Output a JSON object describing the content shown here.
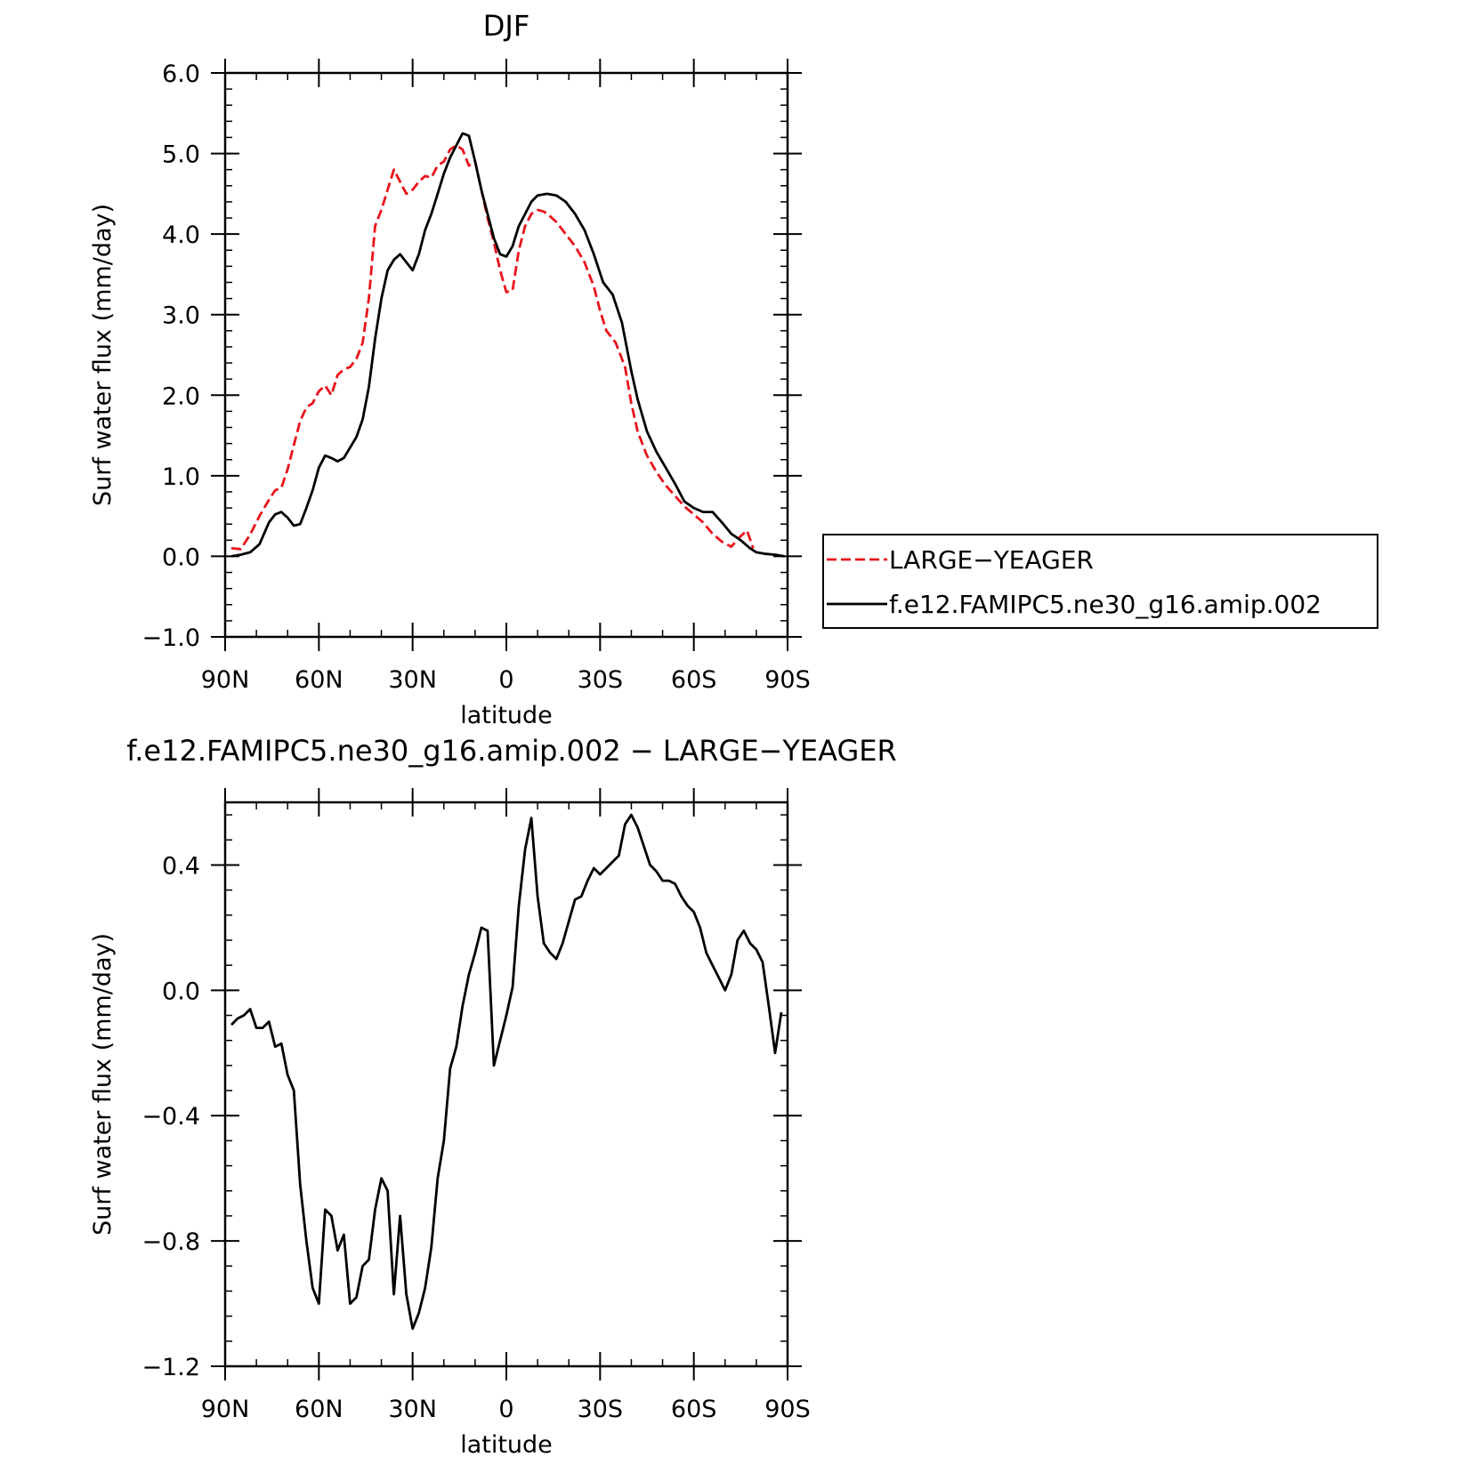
{
  "chart_data": [
    {
      "type": "line",
      "title": "DJF",
      "xlabel": "latitude",
      "ylabel": "Surf water flux (mm/day)",
      "xlim": [
        90,
        -90
      ],
      "ylim": [
        -1.0,
        6.0
      ],
      "x_ticks": [
        {
          "value": 90,
          "label": "90N"
        },
        {
          "value": 60,
          "label": "60N"
        },
        {
          "value": 30,
          "label": "30N"
        },
        {
          "value": 0,
          "label": "0"
        },
        {
          "value": -30,
          "label": "30S"
        },
        {
          "value": -60,
          "label": "60S"
        },
        {
          "value": -90,
          "label": "90S"
        }
      ],
      "y_ticks": [
        {
          "value": -1.0,
          "label": "−1.0"
        },
        {
          "value": 0.0,
          "label": "0.0"
        },
        {
          "value": 1.0,
          "label": "1.0"
        },
        {
          "value": 2.0,
          "label": "2.0"
        },
        {
          "value": 3.0,
          "label": "3.0"
        },
        {
          "value": 4.0,
          "label": "4.0"
        },
        {
          "value": 5.0,
          "label": "5.0"
        },
        {
          "value": 6.0,
          "label": "6.0"
        }
      ],
      "legend_position": "right",
      "series": [
        {
          "name": "LARGE−YEAGER",
          "color": "#e8141c",
          "dash": "dashed",
          "points": [
            [
              88,
              0.1
            ],
            [
              85,
              0.09
            ],
            [
              82,
              0.27
            ],
            [
              79,
              0.5
            ],
            [
              76,
              0.7
            ],
            [
              74,
              0.82
            ],
            [
              72,
              0.85
            ],
            [
              70,
              1.08
            ],
            [
              68,
              1.38
            ],
            [
              66,
              1.68
            ],
            [
              64,
              1.85
            ],
            [
              62,
              1.9
            ],
            [
              60,
              2.05
            ],
            [
              58,
              2.12
            ],
            [
              56,
              2.0
            ],
            [
              54,
              2.25
            ],
            [
              52,
              2.32
            ],
            [
              50,
              2.35
            ],
            [
              48,
              2.45
            ],
            [
              46,
              2.65
            ],
            [
              44,
              3.2
            ],
            [
              42,
              4.1
            ],
            [
              40,
              4.3
            ],
            [
              38,
              4.55
            ],
            [
              36,
              4.8
            ],
            [
              34,
              4.65
            ],
            [
              32,
              4.5
            ],
            [
              30,
              4.55
            ],
            [
              28,
              4.65
            ],
            [
              26,
              4.72
            ],
            [
              24,
              4.7
            ],
            [
              22,
              4.85
            ],
            [
              20,
              4.9
            ],
            [
              18,
              5.05
            ],
            [
              16,
              5.1
            ],
            [
              14,
              5.05
            ],
            [
              12,
              4.85
            ],
            [
              10,
              4.9
            ],
            [
              8,
              4.55
            ],
            [
              6,
              4.2
            ],
            [
              4,
              3.9
            ],
            [
              2,
              3.55
            ],
            [
              0,
              3.28
            ],
            [
              -2,
              3.3
            ],
            [
              -4,
              3.8
            ],
            [
              -6,
              4.1
            ],
            [
              -8,
              4.25
            ],
            [
              -10,
              4.3
            ],
            [
              -12,
              4.28
            ],
            [
              -14,
              4.22
            ],
            [
              -16,
              4.15
            ],
            [
              -18,
              4.05
            ],
            [
              -20,
              3.95
            ],
            [
              -22,
              3.85
            ],
            [
              -25,
              3.65
            ],
            [
              -28,
              3.35
            ],
            [
              -30,
              3.05
            ],
            [
              -32,
              2.8
            ],
            [
              -35,
              2.65
            ],
            [
              -38,
              2.35
            ],
            [
              -40,
              1.9
            ],
            [
              -42,
              1.55
            ],
            [
              -45,
              1.25
            ],
            [
              -48,
              1.05
            ],
            [
              -51,
              0.88
            ],
            [
              -54,
              0.75
            ],
            [
              -57,
              0.62
            ],
            [
              -60,
              0.52
            ],
            [
              -63,
              0.42
            ],
            [
              -66,
              0.28
            ],
            [
              -69,
              0.18
            ],
            [
              -72,
              0.12
            ],
            [
              -75,
              0.25
            ],
            [
              -77,
              0.32
            ],
            [
              -79,
              0.1
            ]
          ]
        },
        {
          "name": "f.e12.FAMIPC5.ne30_g16.amip.002",
          "color": "#000000",
          "dash": "solid",
          "points": [
            [
              88,
              0.0
            ],
            [
              85,
              0.02
            ],
            [
              82,
              0.05
            ],
            [
              79,
              0.15
            ],
            [
              76,
              0.42
            ],
            [
              74,
              0.52
            ],
            [
              72,
              0.55
            ],
            [
              70,
              0.48
            ],
            [
              68,
              0.38
            ],
            [
              66,
              0.4
            ],
            [
              64,
              0.6
            ],
            [
              62,
              0.82
            ],
            [
              60,
              1.1
            ],
            [
              58,
              1.25
            ],
            [
              56,
              1.22
            ],
            [
              54,
              1.18
            ],
            [
              52,
              1.22
            ],
            [
              50,
              1.35
            ],
            [
              48,
              1.48
            ],
            [
              46,
              1.7
            ],
            [
              44,
              2.1
            ],
            [
              42,
              2.7
            ],
            [
              40,
              3.2
            ],
            [
              38,
              3.55
            ],
            [
              36,
              3.68
            ],
            [
              34,
              3.75
            ],
            [
              32,
              3.65
            ],
            [
              30,
              3.55
            ],
            [
              28,
              3.75
            ],
            [
              26,
              4.05
            ],
            [
              24,
              4.25
            ],
            [
              22,
              4.5
            ],
            [
              20,
              4.75
            ],
            [
              18,
              4.95
            ],
            [
              16,
              5.1
            ],
            [
              14,
              5.25
            ],
            [
              12,
              5.22
            ],
            [
              10,
              4.9
            ],
            [
              8,
              4.55
            ],
            [
              6,
              4.25
            ],
            [
              4,
              3.95
            ],
            [
              2,
              3.75
            ],
            [
              0,
              3.72
            ],
            [
              -2,
              3.85
            ],
            [
              -4,
              4.1
            ],
            [
              -6,
              4.25
            ],
            [
              -8,
              4.4
            ],
            [
              -10,
              4.48
            ],
            [
              -13,
              4.5
            ],
            [
              -16,
              4.48
            ],
            [
              -19,
              4.4
            ],
            [
              -22,
              4.25
            ],
            [
              -25,
              4.05
            ],
            [
              -28,
              3.75
            ],
            [
              -31,
              3.4
            ],
            [
              -34,
              3.25
            ],
            [
              -37,
              2.9
            ],
            [
              -40,
              2.3
            ],
            [
              -42,
              1.95
            ],
            [
              -45,
              1.55
            ],
            [
              -48,
              1.3
            ],
            [
              -51,
              1.1
            ],
            [
              -54,
              0.9
            ],
            [
              -57,
              0.68
            ],
            [
              -60,
              0.6
            ],
            [
              -63,
              0.55
            ],
            [
              -66,
              0.55
            ],
            [
              -69,
              0.42
            ],
            [
              -72,
              0.28
            ],
            [
              -75,
              0.2
            ],
            [
              -78,
              0.1
            ],
            [
              -80,
              0.05
            ],
            [
              -83,
              0.03
            ],
            [
              -86,
              0.02
            ],
            [
              -89,
              0.0
            ]
          ]
        }
      ]
    },
    {
      "type": "line",
      "title": "f.e12.FAMIPC5.ne30_g16.amip.002 − LARGE−YEAGER",
      "xlabel": "latitude",
      "ylabel": "Surf water flux (mm/day)",
      "xlim": [
        90,
        -90
      ],
      "ylim": [
        -1.2,
        0.6
      ],
      "x_ticks": [
        {
          "value": 90,
          "label": "90N"
        },
        {
          "value": 60,
          "label": "60N"
        },
        {
          "value": 30,
          "label": "30N"
        },
        {
          "value": 0,
          "label": "0"
        },
        {
          "value": -30,
          "label": "30S"
        },
        {
          "value": -60,
          "label": "60S"
        },
        {
          "value": -90,
          "label": "90S"
        }
      ],
      "y_ticks": [
        {
          "value": -1.2,
          "label": "−1.2"
        },
        {
          "value": -0.8,
          "label": "−0.8"
        },
        {
          "value": -0.4,
          "label": "−0.4"
        },
        {
          "value": 0.0,
          "label": "0.0"
        },
        {
          "value": 0.4,
          "label": "0.4"
        }
      ],
      "series": [
        {
          "name": "",
          "color": "#000000",
          "dash": "solid",
          "points": [
            [
              88,
              -0.11
            ],
            [
              86,
              -0.09
            ],
            [
              84,
              -0.08
            ],
            [
              82,
              -0.06
            ],
            [
              80,
              -0.12
            ],
            [
              78,
              -0.12
            ],
            [
              76,
              -0.1
            ],
            [
              74,
              -0.18
            ],
            [
              72,
              -0.17
            ],
            [
              70,
              -0.27
            ],
            [
              68,
              -0.32
            ],
            [
              66,
              -0.62
            ],
            [
              64,
              -0.8
            ],
            [
              62,
              -0.95
            ],
            [
              60,
              -1.0
            ],
            [
              58,
              -0.7
            ],
            [
              56,
              -0.72
            ],
            [
              54,
              -0.83
            ],
            [
              52,
              -0.78
            ],
            [
              50,
              -1.0
            ],
            [
              48,
              -0.98
            ],
            [
              46,
              -0.88
            ],
            [
              44,
              -0.86
            ],
            [
              42,
              -0.7
            ],
            [
              40,
              -0.6
            ],
            [
              38,
              -0.64
            ],
            [
              36,
              -0.97
            ],
            [
              34,
              -0.72
            ],
            [
              32,
              -0.97
            ],
            [
              30,
              -1.08
            ],
            [
              28,
              -1.03
            ],
            [
              26,
              -0.95
            ],
            [
              24,
              -0.82
            ],
            [
              22,
              -0.6
            ],
            [
              20,
              -0.48
            ],
            [
              18,
              -0.25
            ],
            [
              16,
              -0.18
            ],
            [
              14,
              -0.05
            ],
            [
              12,
              0.05
            ],
            [
              10,
              0.12
            ],
            [
              8,
              0.2
            ],
            [
              6,
              0.19
            ],
            [
              4,
              -0.24
            ],
            [
              2,
              -0.16
            ],
            [
              0,
              -0.08
            ],
            [
              -2,
              0.01
            ],
            [
              -4,
              0.27
            ],
            [
              -6,
              0.45
            ],
            [
              -8,
              0.55
            ],
            [
              -10,
              0.3
            ],
            [
              -12,
              0.15
            ],
            [
              -14,
              0.12
            ],
            [
              -16,
              0.1
            ],
            [
              -18,
              0.15
            ],
            [
              -20,
              0.22
            ],
            [
              -22,
              0.29
            ],
            [
              -24,
              0.3
            ],
            [
              -26,
              0.35
            ],
            [
              -28,
              0.39
            ],
            [
              -30,
              0.37
            ],
            [
              -32,
              0.39
            ],
            [
              -34,
              0.41
            ],
            [
              -36,
              0.43
            ],
            [
              -38,
              0.53
            ],
            [
              -40,
              0.56
            ],
            [
              -42,
              0.52
            ],
            [
              -44,
              0.46
            ],
            [
              -46,
              0.4
            ],
            [
              -48,
              0.38
            ],
            [
              -50,
              0.35
            ],
            [
              -52,
              0.35
            ],
            [
              -54,
              0.34
            ],
            [
              -56,
              0.3
            ],
            [
              -58,
              0.27
            ],
            [
              -60,
              0.25
            ],
            [
              -62,
              0.2
            ],
            [
              -64,
              0.12
            ],
            [
              -66,
              0.08
            ],
            [
              -68,
              0.04
            ],
            [
              -70,
              0.0
            ],
            [
              -72,
              0.05
            ],
            [
              -74,
              0.16
            ],
            [
              -76,
              0.19
            ],
            [
              -78,
              0.15
            ],
            [
              -80,
              0.13
            ],
            [
              -82,
              0.09
            ],
            [
              -84,
              -0.05
            ],
            [
              -86,
              -0.2
            ],
            [
              -88,
              -0.07
            ]
          ]
        }
      ]
    }
  ]
}
